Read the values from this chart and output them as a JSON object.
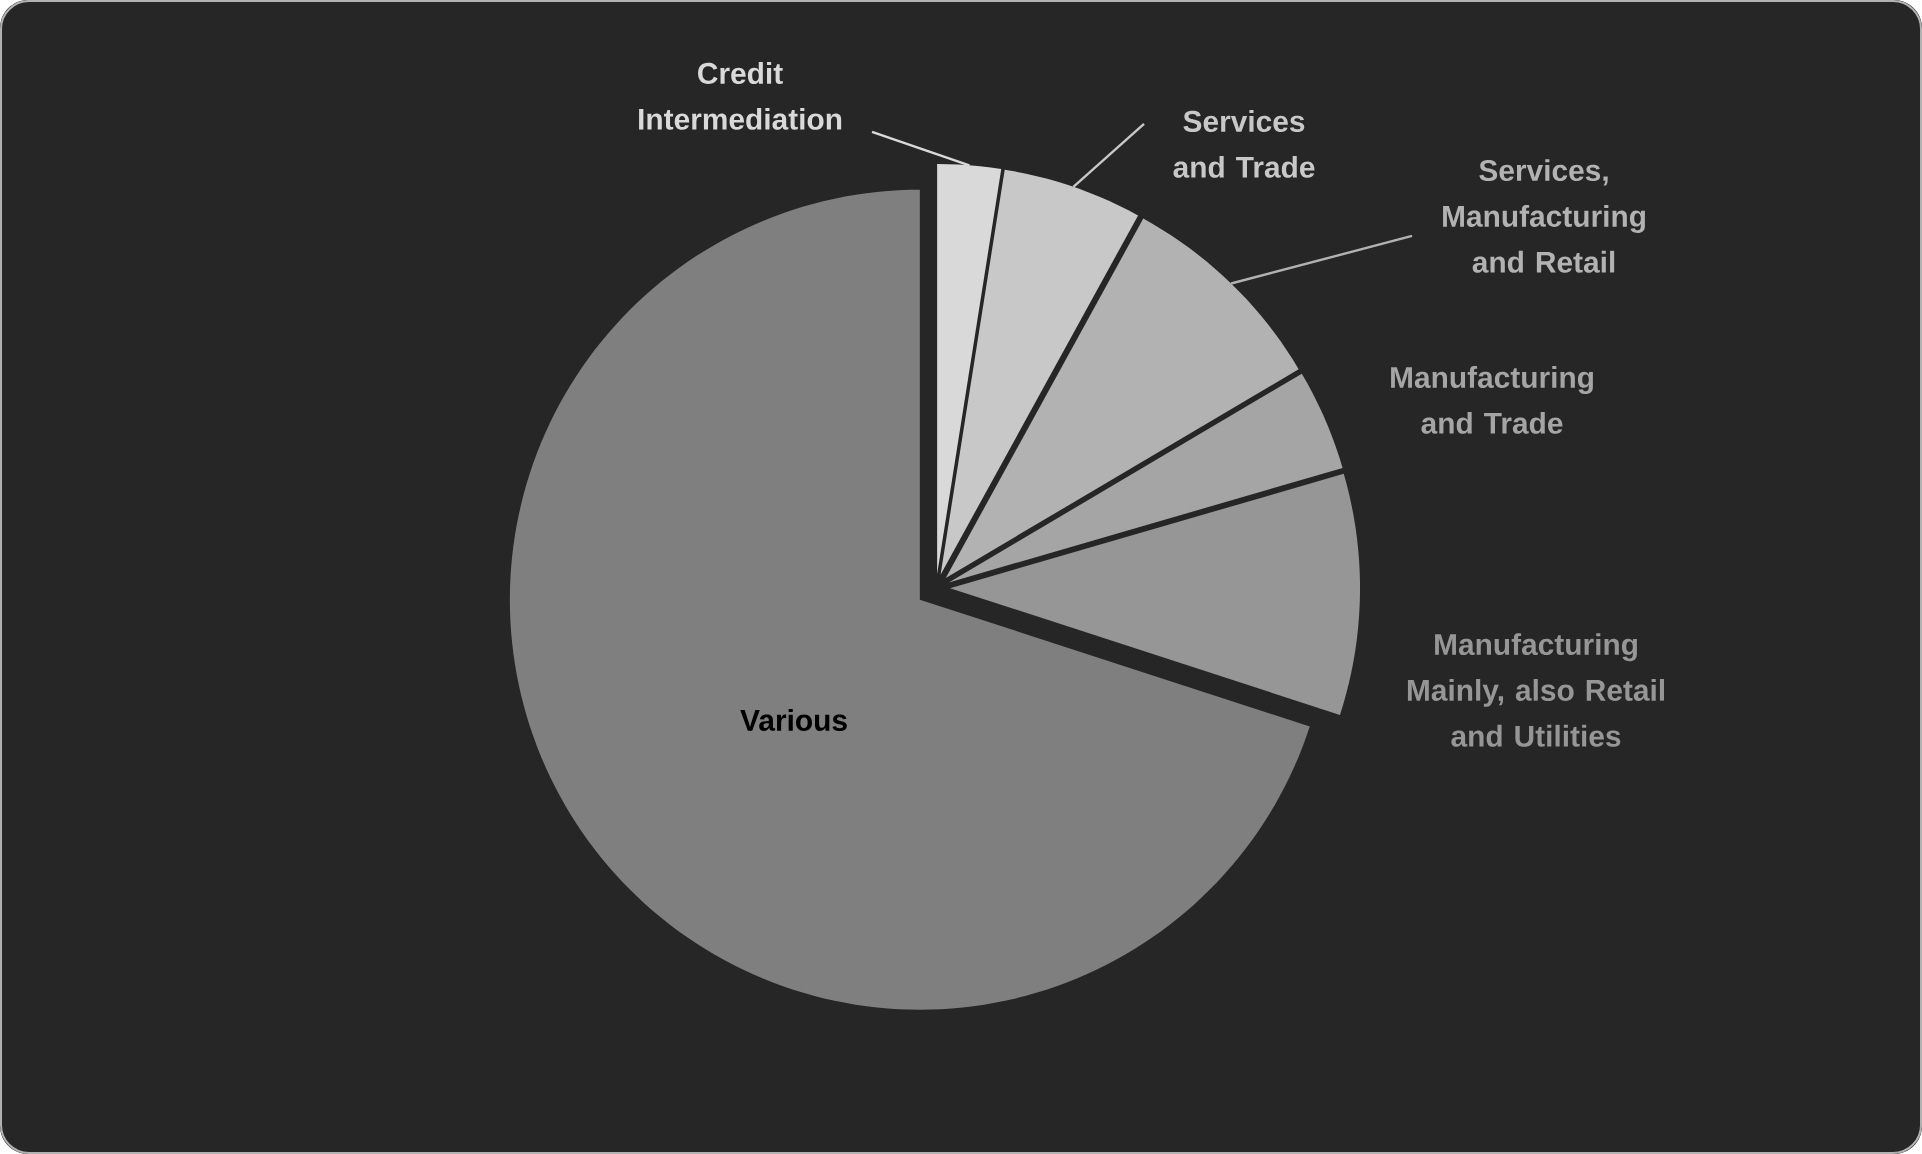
{
  "chart_data": {
    "type": "pie",
    "categories": [
      "Credit Intermediation",
      "Services and Trade",
      "Services, Manufacturing and Retail",
      "Manufacturing and Trade",
      "Manufacturing Mainly, also Retail and Utilities",
      "Various"
    ],
    "values": [
      2.5,
      5.5,
      8.5,
      4,
      9.5,
      70
    ],
    "colors": [
      "#d9d9d9",
      "#c8c8c8",
      "#b2b2b2",
      "#a5a5a5",
      "#969696",
      "#7f7f7f"
    ]
  }
}
